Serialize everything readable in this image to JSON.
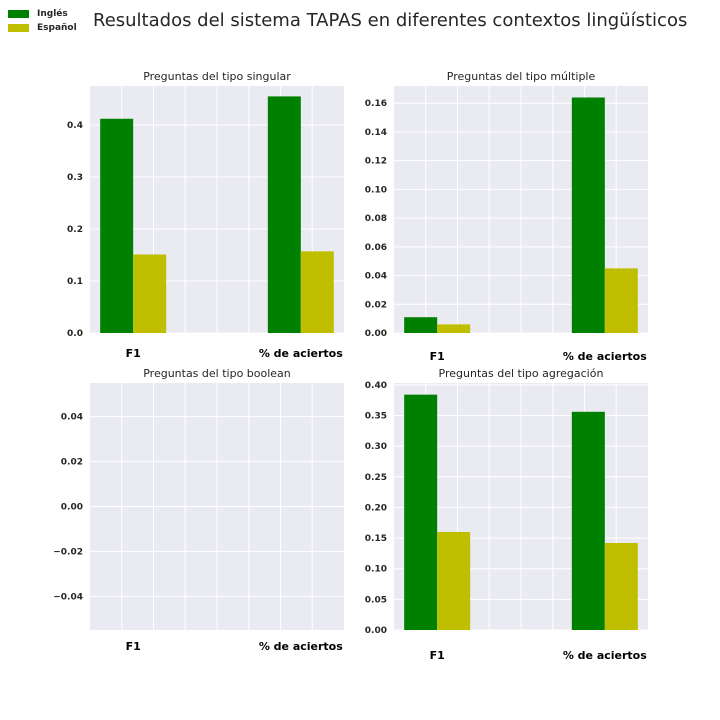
{
  "title": "Resultados del sistema TAPAS en diferentes contextos lingüísticos",
  "legend": [
    {
      "label": "Inglés",
      "color": "#008000"
    },
    {
      "label": "Español",
      "color": "#bfbf00"
    }
  ],
  "colors": {
    "plot_bg": "#eaeaf2",
    "grid": "#ffffff"
  },
  "chart_data": [
    {
      "type": "bar",
      "title": "Preguntas del tipo singular",
      "categories": [
        "F1",
        "% de aciertos"
      ],
      "series": [
        {
          "name": "Inglés",
          "values": [
            0.412,
            0.455
          ]
        },
        {
          "name": "Español",
          "values": [
            0.151,
            0.157
          ]
        }
      ],
      "ylim": [
        0,
        0.475
      ],
      "yticks": [
        "0.0",
        "0.1",
        "0.2",
        "0.3",
        "0.4"
      ],
      "ytick_values": [
        0,
        0.1,
        0.2,
        0.3,
        0.4
      ],
      "xlabel": "",
      "ylabel": ""
    },
    {
      "type": "bar",
      "title": "Preguntas del tipo múltiple",
      "categories": [
        "F1",
        "% de aciertos"
      ],
      "series": [
        {
          "name": "Inglés",
          "values": [
            0.011,
            0.164
          ]
        },
        {
          "name": "Español",
          "values": [
            0.006,
            0.045
          ]
        }
      ],
      "ylim": [
        0,
        0.172
      ],
      "yticks": [
        "0.00",
        "0.02",
        "0.04",
        "0.06",
        "0.08",
        "0.10",
        "0.12",
        "0.14",
        "0.16"
      ],
      "ytick_values": [
        0,
        0.02,
        0.04,
        0.06,
        0.08,
        0.1,
        0.12,
        0.14,
        0.16
      ],
      "xlabel": "",
      "ylabel": ""
    },
    {
      "type": "bar",
      "title": "Preguntas del tipo boolean",
      "categories": [
        "F1",
        "% de aciertos"
      ],
      "series": [
        {
          "name": "Inglés",
          "values": [
            0,
            0
          ]
        },
        {
          "name": "Español",
          "values": [
            0,
            0
          ]
        }
      ],
      "ylim": [
        -0.055,
        0.055
      ],
      "yticks": [
        "0.04",
        "0.02",
        "0.00",
        "−0.02",
        "−0.04"
      ],
      "ytick_values": [
        0.04,
        0.02,
        0,
        -0.02,
        -0.04
      ],
      "xlabel": "",
      "ylabel": ""
    },
    {
      "type": "bar",
      "title": "Preguntas del tipo agregación",
      "categories": [
        "F1",
        "% de aciertos"
      ],
      "series": [
        {
          "name": "Inglés",
          "values": [
            0.384,
            0.356
          ]
        },
        {
          "name": "Español",
          "values": [
            0.16,
            0.142
          ]
        }
      ],
      "ylim": [
        0,
        0.403
      ],
      "yticks": [
        "0.00",
        "0.05",
        "0.10",
        "0.15",
        "0.20",
        "0.25",
        "0.30",
        "0.35",
        "0.40"
      ],
      "ytick_values": [
        0,
        0.05,
        0.1,
        0.15,
        0.2,
        0.25,
        0.3,
        0.35,
        0.4
      ],
      "xlabel": "",
      "ylabel": ""
    }
  ]
}
